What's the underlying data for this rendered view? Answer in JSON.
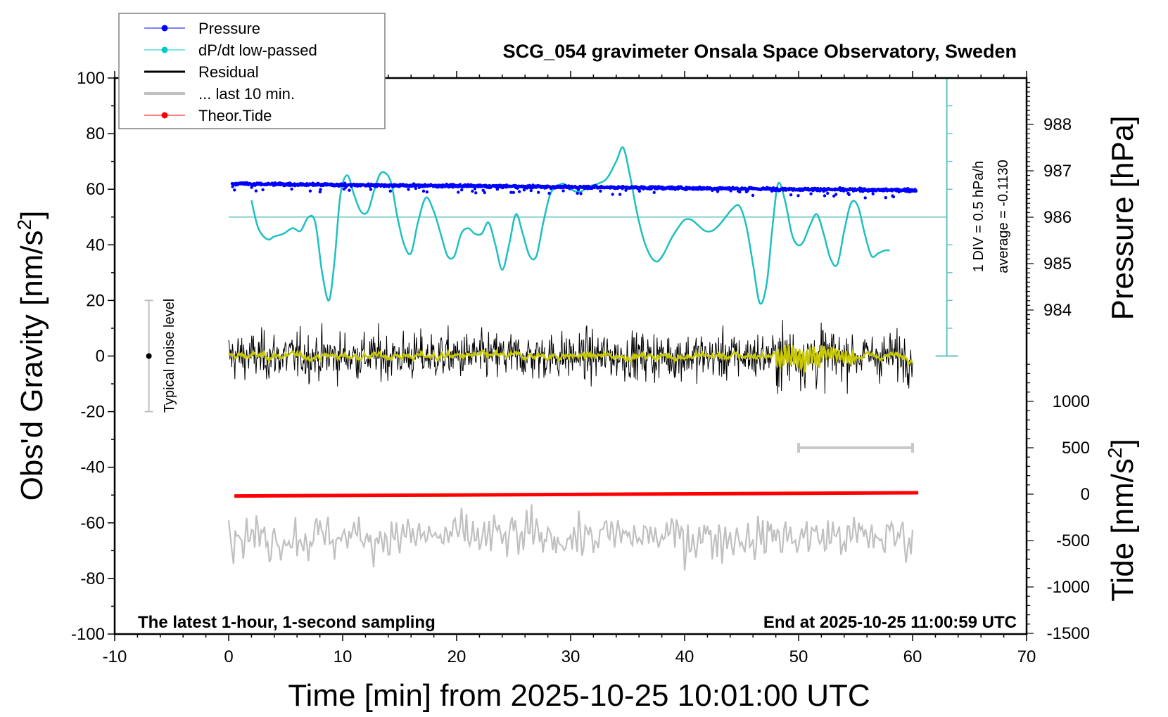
{
  "chart_data": {
    "type": "line",
    "title": "SCG_054 gravimeter Onsala Space Observatory, Sweden",
    "xlabel": "Time [min] from 2025-10-25 10:01:00 UTC",
    "ylabel_left": "Obs'd Gravity [nm/s",
    "ylabel_left_sup": "2",
    "ylabel_left_end": "]",
    "ylabel_right_pressure": "Pressure [hPa]",
    "ylabel_right_tide": "Tide [nm/s",
    "ylabel_right_tide_sup": "2",
    "ylabel_right_tide_end": "]",
    "xlim": [
      -10,
      70
    ],
    "ylim_left": [
      -100,
      100
    ],
    "pressure_range": [
      983.5,
      989
    ],
    "tide_range": [
      -1500,
      1500
    ],
    "x_ticks": [
      "-10",
      "0",
      "10",
      "20",
      "30",
      "40",
      "50",
      "60",
      "70"
    ],
    "x_tick_values": [
      -10,
      0,
      10,
      20,
      30,
      40,
      50,
      60,
      70
    ],
    "y_ticks_left": [
      "100",
      "80",
      "60",
      "40",
      "20",
      "0",
      "-20",
      "-40",
      "-60",
      "-80",
      "-100"
    ],
    "y_tick_values_left": [
      100,
      80,
      60,
      40,
      20,
      0,
      -20,
      -40,
      -60,
      -80,
      -100
    ],
    "pressure_ticks": [
      "988",
      "987",
      "986",
      "985",
      "984"
    ],
    "pressure_tick_values": [
      988,
      987,
      986,
      985,
      984
    ],
    "tide_ticks": [
      "1000",
      "500",
      "0",
      "-500",
      "-1000",
      "-1500"
    ],
    "tide_tick_values": [
      1000,
      500,
      0,
      -500,
      -1000,
      -1500
    ],
    "legend": [
      {
        "label": "Pressure",
        "color": "#0000ff",
        "marker": "dot"
      },
      {
        "label": "dP/dt low-passed",
        "color": "#00c8c8",
        "marker": "dot"
      },
      {
        "label": "Residual",
        "color": "#000000",
        "marker": "line"
      },
      {
        "label": "... last 10 min.",
        "color": "#c0c0c0",
        "marker": "line"
      },
      {
        "label": "Theor.Tide",
        "color": "#ff0000",
        "marker": "dot"
      }
    ],
    "series": [
      {
        "name": "Pressure",
        "unit": "hPa",
        "color": "#0000ff",
        "x_range": [
          0.3,
          60.3
        ],
        "trend_start": 986.72,
        "trend_end": 986.58,
        "scatter": 0.04
      },
      {
        "name": "dP/dt low-passed",
        "unit": "nm/s2 (left axis, baseline 50)",
        "color": "#1ec0c0",
        "x": [
          2.0,
          2.6,
          3.4,
          4.0,
          4.8,
          5.6,
          6.3,
          7.0,
          7.6,
          8.2,
          8.8,
          9.3,
          9.8,
          10.4,
          11.0,
          11.6,
          12.2,
          12.8,
          13.4,
          14.2,
          14.8,
          15.4,
          16.0,
          16.6,
          17.3,
          18.0,
          18.6,
          19.2,
          19.8,
          20.4,
          21.0,
          21.6,
          22.2,
          22.8,
          23.4,
          24.0,
          24.6,
          25.2,
          25.8,
          26.4,
          27.0,
          27.6,
          28.2,
          28.8,
          29.4,
          30.0,
          30.8,
          31.6,
          32.4,
          33.2,
          34.0,
          34.6,
          35.2,
          35.8,
          36.4,
          37.0,
          37.6,
          38.2,
          38.8,
          39.4,
          40.0,
          40.6,
          41.2,
          41.8,
          42.4,
          43.0,
          43.6,
          44.2,
          44.8,
          45.4,
          46.0,
          46.6,
          47.2,
          47.7,
          48.2,
          48.8,
          49.4,
          49.9,
          50.4,
          51.0,
          51.6,
          52.2,
          52.8,
          53.4,
          54.0,
          54.6,
          55.2,
          55.8,
          56.4,
          57.0,
          57.6,
          58.0
        ],
        "values": [
          56,
          46,
          42,
          43,
          44,
          46,
          45,
          50,
          48,
          30,
          20,
          35,
          58,
          65,
          58,
          52,
          52,
          60,
          66,
          63,
          50,
          40,
          37,
          48,
          57,
          52,
          44,
          36,
          36,
          44,
          46,
          44,
          44,
          48,
          40,
          31,
          40,
          51,
          44,
          36,
          36,
          48,
          58,
          61,
          62,
          60,
          59,
          61,
          62,
          64,
          70,
          75,
          65,
          52,
          42,
          36,
          34,
          37,
          42,
          46,
          49,
          49,
          47,
          45,
          45,
          47,
          50,
          53,
          54,
          47,
          33,
          19,
          26,
          46,
          62,
          56,
          44,
          40,
          41,
          47,
          51,
          44,
          35,
          33,
          45,
          55,
          54,
          44,
          36,
          37,
          38,
          38
        ],
        "baseline": 50,
        "scale_label": "1 DIV = 0.5 hPa/h",
        "average_label": "average = -0.1130"
      },
      {
        "name": "Residual",
        "unit": "nm/s2",
        "color": "#000000",
        "x_range": [
          0,
          60
        ],
        "amplitude": 11,
        "smoothed_color": "#c8c800"
      },
      {
        "name": "... last 10 min.",
        "unit": "nm/s2 (offset -65)",
        "color": "#c0c0c0",
        "x_range": [
          0,
          60
        ],
        "offset": -65,
        "amplitude": 9
      },
      {
        "name": "Theor.Tide",
        "unit": "nm/s2 (right axis)",
        "color": "#ff0000",
        "x": [
          0.5,
          60.5
        ],
        "values": [
          -20,
          15
        ]
      }
    ],
    "noise_bar": {
      "label": "Typical noise level",
      "center": 0,
      "low": -20,
      "high": 20,
      "x": -7
    },
    "last10_bar": {
      "x_start": 50,
      "x_end": 60,
      "tide_level": 500
    },
    "annotations": {
      "bottom_left": "The latest 1-hour, 1-second sampling",
      "bottom_right": "End at 2025-10-25 11:00:59 UTC"
    }
  }
}
